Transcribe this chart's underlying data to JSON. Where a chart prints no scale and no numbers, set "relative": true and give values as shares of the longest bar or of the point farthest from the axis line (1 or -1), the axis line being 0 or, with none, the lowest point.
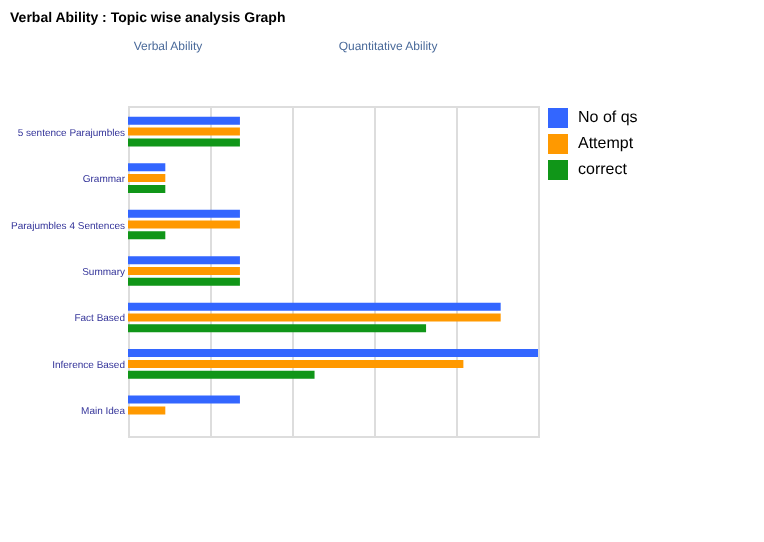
{
  "chart_data": {
    "type": "bar",
    "orientation": "horizontal",
    "relative": true,
    "title": "Verbal Ability : Topic wise analysis Graph",
    "annotations": [
      "Verbal Ability",
      "Quantitative Ability"
    ],
    "categories": [
      "5 sentence Parajumbles",
      "Grammar",
      "Parajumbles 4 Sentences",
      "Summary",
      "Fact Based",
      "Inference Based",
      "Main Idea"
    ],
    "series": [
      {
        "name": "No of qs",
        "color": "#3366ff",
        "values": [
          0.273,
          0.091,
          0.273,
          0.273,
          0.909,
          1,
          0.273
        ]
      },
      {
        "name": "Attempt",
        "color": "#ff9900",
        "values": [
          0.273,
          0.091,
          0.273,
          0.273,
          0.909,
          0.818,
          0.091
        ]
      },
      {
        "name": "correct",
        "color": "#109618",
        "values": [
          0.273,
          0.091,
          0.091,
          0.273,
          0.727,
          0.455,
          0
        ]
      }
    ],
    "grid": "x",
    "legend": "top right"
  }
}
